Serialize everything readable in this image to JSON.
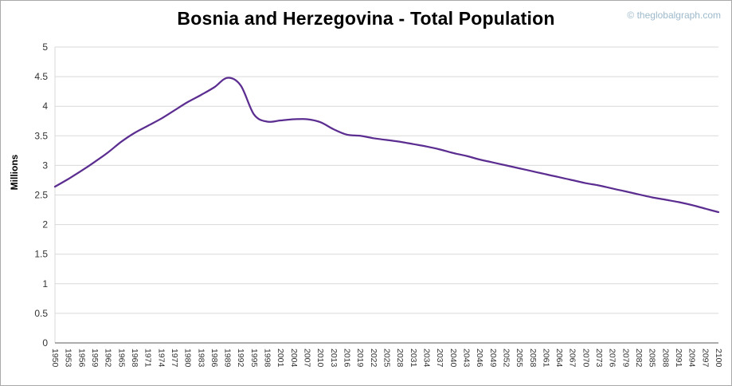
{
  "header": {
    "title": "Bosnia and Herzegovina - Total Population",
    "watermark": "© theglobalgraph.com"
  },
  "colors": {
    "line": "#5b2d90",
    "grid": "#d9d9d9",
    "axis": "#595959",
    "tick_text": "#333333",
    "watermark": "#9db9cb"
  },
  "chart_data": {
    "type": "line",
    "title": "Bosnia and Herzegovina - Total Population",
    "xlabel": "",
    "ylabel": "Millions",
    "ylim": [
      0,
      5
    ],
    "ytick_step": 0.5,
    "grid": true,
    "legend": false,
    "x": [
      1950,
      1953,
      1956,
      1959,
      1962,
      1965,
      1968,
      1971,
      1974,
      1977,
      1980,
      1983,
      1986,
      1989,
      1992,
      1995,
      1998,
      2001,
      2004,
      2007,
      2010,
      2013,
      2016,
      2019,
      2022,
      2025,
      2028,
      2031,
      2034,
      2037,
      2040,
      2043,
      2046,
      2049,
      2052,
      2055,
      2058,
      2061,
      2064,
      2067,
      2070,
      2073,
      2076,
      2079,
      2082,
      2085,
      2088,
      2091,
      2094,
      2097,
      2100
    ],
    "series": [
      {
        "name": "Total Population (millions)",
        "color": "#5b2d90",
        "values": [
          2.64,
          2.77,
          2.91,
          3.06,
          3.22,
          3.4,
          3.55,
          3.67,
          3.79,
          3.93,
          4.07,
          4.19,
          4.32,
          4.48,
          4.35,
          3.86,
          3.74,
          3.76,
          3.78,
          3.78,
          3.73,
          3.61,
          3.52,
          3.5,
          3.46,
          3.43,
          3.4,
          3.36,
          3.32,
          3.27,
          3.21,
          3.16,
          3.1,
          3.05,
          3.0,
          2.95,
          2.9,
          2.85,
          2.8,
          2.75,
          2.7,
          2.66,
          2.61,
          2.56,
          2.51,
          2.46,
          2.42,
          2.38,
          2.33,
          2.27,
          2.21
        ]
      }
    ]
  }
}
